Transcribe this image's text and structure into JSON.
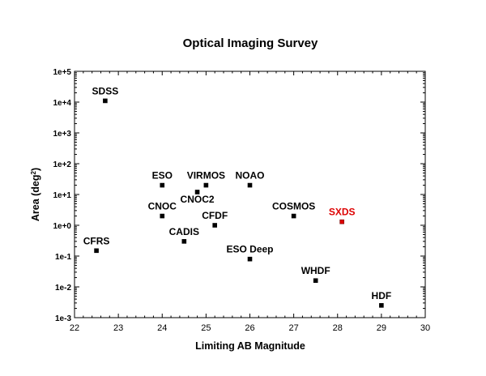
{
  "chart_data": {
    "type": "scatter",
    "title": "Optical Imaging Survey",
    "xlabel": "Limiting AB Magnitude",
    "ylabel_prefix": "Area (deg",
    "ylabel_sup": "2",
    "ylabel_suffix": ")",
    "xlim": [
      22,
      30
    ],
    "ylim": [
      0.001,
      100000
    ],
    "yscale": "log",
    "grid": false,
    "x_ticks": [
      22,
      23,
      24,
      25,
      26,
      27,
      28,
      29,
      30
    ],
    "y_ticks": [
      {
        "value": 100000,
        "label": "1e+5"
      },
      {
        "value": 10000,
        "label": "1e+4"
      },
      {
        "value": 1000,
        "label": "1e+3"
      },
      {
        "value": 100,
        "label": "1e+2"
      },
      {
        "value": 10,
        "label": "1e+1"
      },
      {
        "value": 1,
        "label": "1e+0"
      },
      {
        "value": 0.1,
        "label": "1e-1"
      },
      {
        "value": 0.01,
        "label": "1e-2"
      },
      {
        "value": 0.001,
        "label": "1e-3"
      }
    ],
    "points": [
      {
        "label": "SDSS",
        "x": 22.7,
        "y": 11000,
        "color": "#000000",
        "label_pos": "above"
      },
      {
        "label": "CFRS",
        "x": 22.5,
        "y": 0.15,
        "color": "#000000",
        "label_pos": "above"
      },
      {
        "label": "ESO",
        "x": 24.0,
        "y": 20,
        "color": "#000000",
        "label_pos": "above"
      },
      {
        "label": "CNOC",
        "x": 24.0,
        "y": 2,
        "color": "#000000",
        "label_pos": "above"
      },
      {
        "label": "CADIS",
        "x": 24.5,
        "y": 0.3,
        "color": "#000000",
        "label_pos": "above"
      },
      {
        "label": "CNOC2",
        "x": 24.8,
        "y": 12,
        "color": "#000000",
        "label_pos": "below"
      },
      {
        "label": "VIRMOS",
        "x": 25.0,
        "y": 20,
        "color": "#000000",
        "label_pos": "above"
      },
      {
        "label": "CFDF",
        "x": 25.2,
        "y": 1,
        "color": "#000000",
        "label_pos": "above"
      },
      {
        "label": "NOAO",
        "x": 26.0,
        "y": 20,
        "color": "#000000",
        "label_pos": "above"
      },
      {
        "label": "ESO Deep",
        "x": 26.0,
        "y": 0.08,
        "color": "#000000",
        "label_pos": "above"
      },
      {
        "label": "COSMOS",
        "x": 27.0,
        "y": 2,
        "color": "#000000",
        "label_pos": "above"
      },
      {
        "label": "SXDS",
        "x": 28.1,
        "y": 1.3,
        "color": "#dd0000",
        "label_pos": "above"
      },
      {
        "label": "WHDF",
        "x": 27.5,
        "y": 0.016,
        "color": "#000000",
        "label_pos": "above"
      },
      {
        "label": "HDF",
        "x": 29.0,
        "y": 0.0025,
        "color": "#000000",
        "label_pos": "above"
      }
    ]
  }
}
